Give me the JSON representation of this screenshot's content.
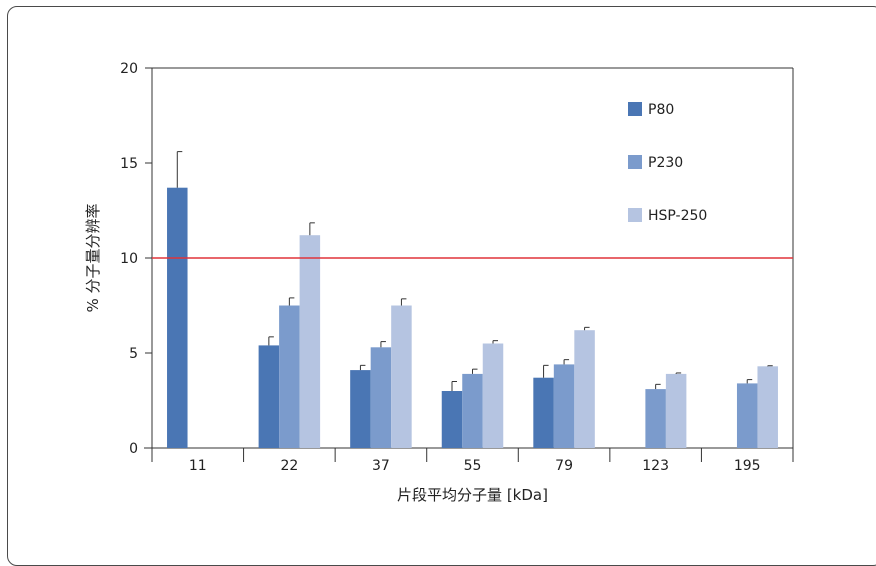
{
  "chart_data": {
    "type": "bar",
    "title": "",
    "xlabel": "片段平均分子量 [kDa]",
    "ylabel": "% 分子量分辨率",
    "ylim": [
      0,
      20
    ],
    "yticks": [
      0,
      5,
      10,
      15,
      20
    ],
    "categories": [
      "11",
      "22",
      "37",
      "55",
      "79",
      "123",
      "195"
    ],
    "series": [
      {
        "name": "P80",
        "color": "#4a76b4",
        "values": [
          13.7,
          5.4,
          4.1,
          3.0,
          3.7,
          null,
          null
        ],
        "errors": [
          1.9,
          0.45,
          0.25,
          0.5,
          0.65,
          null,
          null
        ]
      },
      {
        "name": "P230",
        "color": "#7b9bcc",
        "values": [
          null,
          7.5,
          5.3,
          3.9,
          4.4,
          3.1,
          3.4
        ],
        "errors": [
          null,
          0.4,
          0.3,
          0.25,
          0.25,
          0.25,
          0.2
        ]
      },
      {
        "name": "HSP-250",
        "color": "#b5c4e1",
        "values": [
          null,
          11.2,
          7.5,
          5.5,
          6.2,
          3.9,
          4.3
        ],
        "errors": [
          null,
          0.65,
          0.35,
          0.15,
          0.15,
          0.05,
          0.03
        ]
      }
    ],
    "reference_line": {
      "value": 10,
      "color": "#e0343a"
    },
    "legend_position": "top-right",
    "grid": false
  }
}
